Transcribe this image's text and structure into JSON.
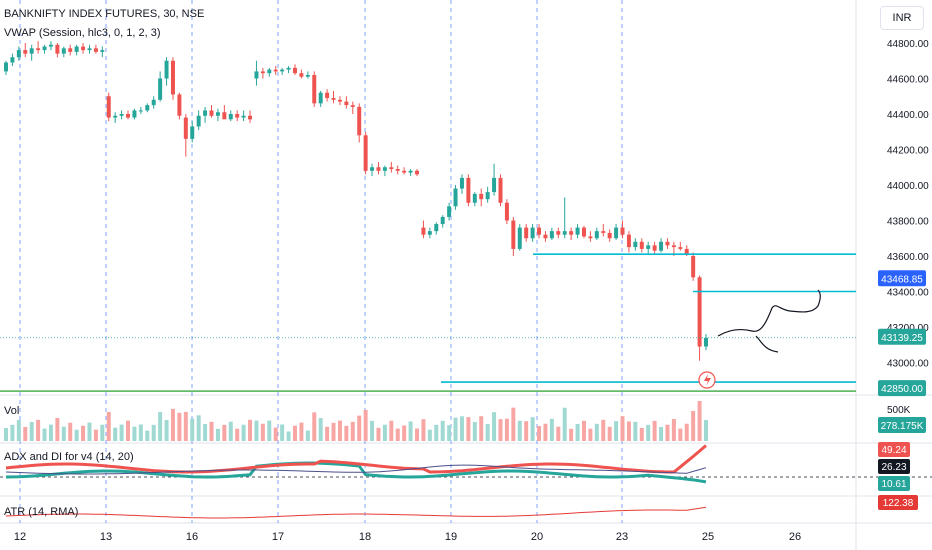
{
  "header": {
    "title": "BANKNIFTY INDEX FUTURES, 30, NSE",
    "vwap_legend": "VWAP (Session, hlc3, 0, 1, 2, 3)",
    "currency_button": "INR"
  },
  "panes": {
    "volume_label": "Vol",
    "adx_label": "ADX and DI for v4 (14, 20)",
    "atr_label": "ATR (14, RMA)"
  },
  "colors": {
    "up": "#26a69a",
    "down": "#ef5350",
    "vol_up": "#9fd9d2",
    "vol_down": "#f7a6a4",
    "grid_dash": "#2962ff",
    "level_line": "#00bcd4",
    "green_line": "#4caf50",
    "badge_blue": "#2962ff",
    "badge_green": "#26a69a",
    "badge_red": "#ef5350",
    "adx_line": "#4a4e8a",
    "atr_line": "#e53935"
  },
  "chart_data": {
    "type": "candlestick",
    "title": "BANKNIFTY INDEX FUTURES, 30, NSE",
    "x_tick_labels": [
      "12",
      "13",
      "16",
      "17",
      "18",
      "19",
      "20",
      "23",
      "25",
      "26"
    ],
    "price_axis_ticks": [
      "44800.00",
      "44600.00",
      "44400.00",
      "44200.00",
      "44000.00",
      "43800.00",
      "43600.00",
      "43400.00",
      "43200.00",
      "43000.00"
    ],
    "ylim": [
      42790,
      44930
    ],
    "price_badges": [
      {
        "label": "43468.85",
        "value": 43468.85,
        "color": "blue"
      },
      {
        "label": "43139.25",
        "value": 43139.25,
        "color": "green"
      },
      {
        "label": "42850.00",
        "value": 42850.0,
        "color": "green"
      }
    ],
    "horizontal_levels": [
      {
        "value": 43610,
        "color": "cyan"
      },
      {
        "value": 43400,
        "color": "cyan"
      },
      {
        "value": 42890,
        "color": "cyan"
      },
      {
        "value": 42850,
        "color": "green"
      }
    ],
    "candles": [
      [
        44640,
        44700,
        44620,
        44690
      ],
      [
        44690,
        44740,
        44670,
        44720
      ],
      [
        44720,
        44780,
        44700,
        44760
      ],
      [
        44760,
        44800,
        44720,
        44740
      ],
      [
        44740,
        44790,
        44700,
        44770
      ],
      [
        44770,
        44810,
        44740,
        44760
      ],
      [
        44760,
        44790,
        44740,
        44780
      ],
      [
        44780,
        44810,
        44760,
        44790
      ],
      [
        44790,
        44800,
        44720,
        44740
      ],
      [
        44740,
        44780,
        44720,
        44770
      ],
      [
        44770,
        44790,
        44730,
        44750
      ],
      [
        44750,
        44790,
        44730,
        44780
      ],
      [
        44780,
        44800,
        44740,
        44760
      ],
      [
        44760,
        44790,
        44740,
        44770
      ],
      [
        44770,
        44790,
        44740,
        44750
      ],
      [
        44750,
        44780,
        44720,
        44760
      ],
      [
        44500,
        44520,
        44360,
        44380
      ],
      [
        44380,
        44410,
        44350,
        44390
      ],
      [
        44390,
        44420,
        44370,
        44400
      ],
      [
        44400,
        44420,
        44370,
        44380
      ],
      [
        44380,
        44430,
        44370,
        44420
      ],
      [
        44420,
        44440,
        44400,
        44420
      ],
      [
        44420,
        44460,
        44410,
        44450
      ],
      [
        44450,
        44500,
        44430,
        44480
      ],
      [
        44480,
        44640,
        44470,
        44600
      ],
      [
        44600,
        44720,
        44560,
        44700
      ],
      [
        44700,
        44720,
        44480,
        44510
      ],
      [
        44510,
        44520,
        44370,
        44390
      ],
      [
        44380,
        44400,
        44160,
        44260
      ],
      [
        44260,
        44360,
        44240,
        44330
      ],
      [
        44330,
        44420,
        44310,
        44390
      ],
      [
        44390,
        44440,
        44350,
        44420
      ],
      [
        44420,
        44450,
        44380,
        44390
      ],
      [
        44390,
        44430,
        44360,
        44410
      ],
      [
        44410,
        44450,
        44380,
        44370
      ],
      [
        44370,
        44420,
        44360,
        44400
      ],
      [
        44400,
        44420,
        44360,
        44380
      ],
      [
        44380,
        44420,
        44360,
        44390
      ],
      [
        44390,
        44420,
        44350,
        44370
      ],
      [
        44600,
        44700,
        44560,
        44640
      ],
      [
        44640,
        44660,
        44600,
        44630
      ],
      [
        44630,
        44660,
        44610,
        44650
      ],
      [
        44650,
        44670,
        44620,
        44640
      ],
      [
        44640,
        44660,
        44620,
        44650
      ],
      [
        44650,
        44670,
        44630,
        44660
      ],
      [
        44660,
        44680,
        44620,
        44630
      ],
      [
        44630,
        44650,
        44600,
        44610
      ],
      [
        44610,
        44640,
        44600,
        44620
      ],
      [
        44620,
        44640,
        44440,
        44460
      ],
      [
        44460,
        44530,
        44440,
        44520
      ],
      [
        44520,
        44540,
        44470,
        44490
      ],
      [
        44490,
        44530,
        44460,
        44480
      ],
      [
        44480,
        44500,
        44450,
        44470
      ],
      [
        44470,
        44500,
        44430,
        44450
      ],
      [
        44450,
        44470,
        44400,
        44440
      ],
      [
        44440,
        44460,
        44240,
        44280
      ],
      [
        44280,
        44300,
        44060,
        44080
      ],
      [
        44080,
        44120,
        44050,
        44100
      ],
      [
        44100,
        44130,
        44060,
        44080
      ],
      [
        44080,
        44110,
        44050,
        44100
      ],
      [
        44100,
        44130,
        44070,
        44090
      ],
      [
        44090,
        44110,
        44060,
        44080
      ],
      [
        44080,
        44100,
        44060,
        44070
      ],
      [
        44070,
        44090,
        44050,
        44080
      ],
      [
        44080,
        44090,
        44050,
        44060
      ],
      [
        43760,
        43800,
        43700,
        43720
      ],
      [
        43720,
        43760,
        43700,
        43740
      ],
      [
        43740,
        43790,
        43720,
        43780
      ],
      [
        43780,
        43830,
        43760,
        43820
      ],
      [
        43820,
        43900,
        43800,
        43880
      ],
      [
        43880,
        44000,
        43860,
        43980
      ],
      [
        43980,
        44060,
        43950,
        44040
      ],
      [
        44040,
        44060,
        43880,
        43900
      ],
      [
        43900,
        43960,
        43880,
        43950
      ],
      [
        43950,
        43980,
        43880,
        43920
      ],
      [
        43920,
        43990,
        43900,
        43960
      ],
      [
        43960,
        44120,
        43940,
        44040
      ],
      [
        44040,
        44060,
        43880,
        43900
      ],
      [
        43900,
        43920,
        43780,
        43800
      ],
      [
        43800,
        43820,
        43600,
        43640
      ],
      [
        43640,
        43780,
        43630,
        43760
      ],
      [
        43760,
        43780,
        43680,
        43700
      ],
      [
        43700,
        43780,
        43680,
        43760
      ],
      [
        43760,
        43780,
        43700,
        43720
      ],
      [
        43720,
        43740,
        43680,
        43700
      ],
      [
        43700,
        43760,
        43690,
        43740
      ],
      [
        43740,
        43760,
        43700,
        43720
      ],
      [
        43720,
        43930,
        43700,
        43740
      ],
      [
        43740,
        43760,
        43690,
        43720
      ],
      [
        43720,
        43780,
        43700,
        43760
      ],
      [
        43760,
        43770,
        43700,
        43710
      ],
      [
        43710,
        43740,
        43680,
        43700
      ],
      [
        43700,
        43760,
        43690,
        43740
      ],
      [
        43740,
        43780,
        43710,
        43730
      ],
      [
        43730,
        43750,
        43680,
        43700
      ],
      [
        43700,
        43780,
        43690,
        43760
      ],
      [
        43760,
        43800,
        43700,
        43720
      ],
      [
        43720,
        43740,
        43620,
        43650
      ],
      [
        43650,
        43700,
        43630,
        43680
      ],
      [
        43680,
        43700,
        43620,
        43640
      ],
      [
        43640,
        43680,
        43610,
        43660
      ],
      [
        43660,
        43680,
        43610,
        43630
      ],
      [
        43630,
        43700,
        43620,
        43680
      ],
      [
        43680,
        43700,
        43640,
        43660
      ],
      [
        43660,
        43680,
        43600,
        43650
      ],
      [
        43650,
        43680,
        43630,
        43640
      ],
      [
        43640,
        43660,
        43600,
        43610
      ],
      [
        43600,
        43620,
        43460,
        43480
      ],
      [
        43480,
        43490,
        43010,
        43090
      ],
      [
        43090,
        43160,
        43070,
        43139
      ]
    ],
    "volume": {
      "scale_label": "500K",
      "last_label": "278.175K"
    },
    "adx": {
      "label": "ADX and DI for v4 (14, 20)",
      "values": {
        "di_plus": "49.24",
        "adx": "26.23",
        "di_minus": "10.61"
      }
    },
    "atr": {
      "label": "ATR (14, RMA)",
      "value": "122.38"
    }
  }
}
